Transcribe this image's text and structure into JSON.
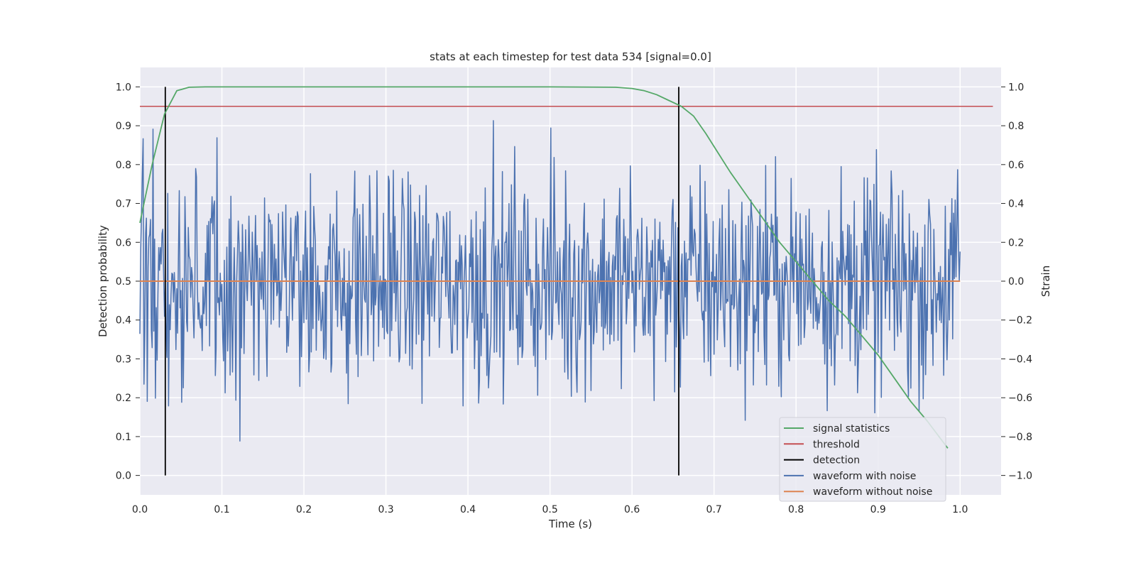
{
  "chart_data": {
    "type": "line",
    "title": "stats at each timestep for test data 534 [signal=0.0]",
    "xlabel": "Time (s)",
    "ylabel_left": "Detection probability",
    "ylabel_right": "Strain",
    "xlim": [
      0.0,
      1.05
    ],
    "ylim_left": [
      -0.05,
      1.05
    ],
    "ylim_right": [
      -1.1,
      1.1
    ],
    "x_ticks": [
      0.0,
      0.1,
      0.2,
      0.3,
      0.4,
      0.5,
      0.6,
      0.7,
      0.8,
      0.9,
      1.0
    ],
    "x_tick_labels": [
      "0.0",
      "0.1",
      "0.2",
      "0.3",
      "0.4",
      "0.5",
      "0.6",
      "0.7",
      "0.8",
      "0.9",
      "1.0"
    ],
    "y_left_ticks": [
      0.0,
      0.1,
      0.2,
      0.3,
      0.4,
      0.5,
      0.6,
      0.7,
      0.8,
      0.9,
      1.0
    ],
    "y_left_tick_labels": [
      "0.0",
      "0.1",
      "0.2",
      "0.3",
      "0.4",
      "0.5",
      "0.6",
      "0.7",
      "0.8",
      "0.9",
      "1.0"
    ],
    "y_right_ticks": [
      -1.0,
      -0.8,
      -0.6,
      -0.4,
      -0.2,
      0.0,
      0.2,
      0.4,
      0.6,
      0.8,
      1.0
    ],
    "y_right_tick_labels": [
      "−1.0",
      "−0.8",
      "−0.6",
      "−0.4",
      "−0.2",
      "0.0",
      "0.2",
      "0.4",
      "0.6",
      "0.8",
      "1.0"
    ],
    "grid": true,
    "legend_position": "lower-right",
    "background_color": "#eaeaf2",
    "series": [
      {
        "name": "signal statistics",
        "axis": "left",
        "color": "#55a868",
        "x": [
          0.0,
          0.015,
          0.03,
          0.045,
          0.06,
          0.08,
          0.1,
          0.2,
          0.3,
          0.4,
          0.5,
          0.58,
          0.6,
          0.615,
          0.63,
          0.645,
          0.66,
          0.675,
          0.69,
          0.705,
          0.72,
          0.74,
          0.76,
          0.78,
          0.8,
          0.82,
          0.84,
          0.86,
          0.88,
          0.9,
          0.92,
          0.94,
          0.96,
          0.985
        ],
        "y": [
          0.65,
          0.8,
          0.93,
          0.99,
          0.999,
          1.0,
          1.0,
          1.0,
          1.0,
          1.0,
          1.0,
          0.999,
          0.996,
          0.99,
          0.98,
          0.965,
          0.95,
          0.925,
          0.88,
          0.83,
          0.78,
          0.72,
          0.66,
          0.6,
          0.55,
          0.5,
          0.45,
          0.41,
          0.36,
          0.31,
          0.25,
          0.19,
          0.14,
          0.07
        ]
      },
      {
        "name": "threshold",
        "axis": "left",
        "color": "#c44e52",
        "x": [
          0.0,
          1.04
        ],
        "y": [
          0.95,
          0.95
        ]
      },
      {
        "name": "detection",
        "axis": "left",
        "color": "#000000",
        "x_positions": [
          0.031,
          0.657
        ],
        "y_range": [
          0.0,
          1.0
        ]
      },
      {
        "name": "waveform with noise",
        "axis": "right",
        "color": "#4c72b0",
        "samples": 1000,
        "x_range": [
          0.0,
          1.0
        ],
        "y_range": [
          -1.0,
          1.0
        ]
      },
      {
        "name": "waveform without noise",
        "axis": "right",
        "color": "#dd8452",
        "x": [
          0.0,
          1.0
        ],
        "y": [
          0.0,
          0.0
        ]
      }
    ]
  }
}
